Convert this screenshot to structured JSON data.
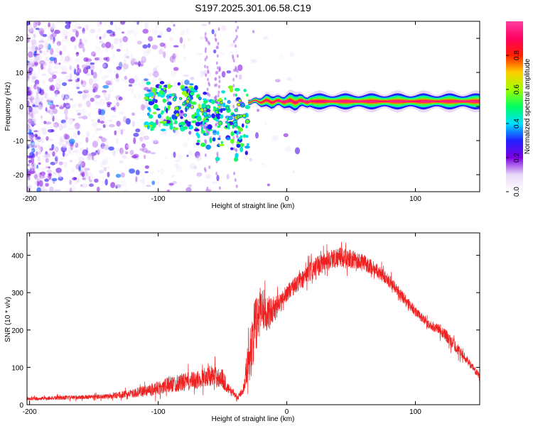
{
  "chart_data": [
    {
      "id": "spectrogram",
      "type": "heatmap",
      "title": "S197.2025.301.06.58.C19",
      "xlabel": "Height of straight line (km)",
      "ylabel": "Frequency (Hz)",
      "xlim": [
        -202,
        150
      ],
      "ylim": [
        -25,
        25
      ],
      "xticks": [
        -200,
        -100,
        0,
        100
      ],
      "yticks": [
        -20,
        -10,
        0,
        10,
        20
      ],
      "colorbar": {
        "label": "Normalized spectral amplitude",
        "range": [
          0,
          1
        ],
        "ticks": [
          0.0,
          0.2,
          0.4,
          0.6,
          0.8
        ],
        "tick_labels": [
          "0.0",
          "0.2",
          "0.4",
          "0.6",
          "0.8"
        ],
        "colormap": [
          "#ffffff",
          "#e8d8f8",
          "#7b00e0",
          "#2020ff",
          "#00e0ff",
          "#00ff60",
          "#a0ff00",
          "#ffd000",
          "#ff2000",
          "#ff0060",
          "#ff40a0"
        ]
      },
      "features": [
        {
          "name": "noise",
          "x_range": [
            -202,
            -30
          ],
          "freq_range": [
            -25,
            25
          ],
          "amplitude": [
            0.0,
            0.3
          ]
        },
        {
          "name": "tone",
          "x_range": [
            -30,
            150
          ],
          "freq_center": 1.5,
          "amplitude": [
            0.4,
            1.0
          ]
        }
      ]
    },
    {
      "id": "snr",
      "type": "line",
      "title": "",
      "xlabel": "Height of straight line (km)",
      "ylabel": "SNR (10 * v/v)",
      "xlim": [
        -202,
        150
      ],
      "ylim": [
        0,
        460
      ],
      "xticks": [
        -200,
        -100,
        0,
        100
      ],
      "yticks": [
        0,
        100,
        200,
        300,
        400
      ],
      "color": "#ee2020",
      "series": [
        {
          "name": "SNR",
          "envelope_x": [
            -202,
            -180,
            -160,
            -140,
            -120,
            -100,
            -90,
            -80,
            -70,
            -60,
            -50,
            -45,
            -38,
            -34,
            -30,
            -25,
            -20,
            -15,
            -10,
            -5,
            0,
            10,
            20,
            30,
            40,
            50,
            60,
            70,
            80,
            90,
            100,
            110,
            120,
            130,
            140,
            150
          ],
          "envelope_y": [
            15,
            18,
            20,
            22,
            30,
            45,
            55,
            60,
            65,
            80,
            70,
            40,
            20,
            40,
            120,
            200,
            270,
            240,
            260,
            270,
            300,
            330,
            360,
            385,
            395,
            390,
            380,
            360,
            330,
            290,
            250,
            215,
            200,
            160,
            120,
            75
          ],
          "envelope_amp": [
            8,
            10,
            10,
            12,
            20,
            35,
            40,
            45,
            45,
            50,
            50,
            25,
            12,
            20,
            100,
            150,
            120,
            80,
            60,
            50,
            40,
            45,
            50,
            50,
            50,
            45,
            40,
            35,
            30,
            30,
            25,
            20,
            30,
            30,
            20,
            15
          ]
        }
      ]
    }
  ]
}
